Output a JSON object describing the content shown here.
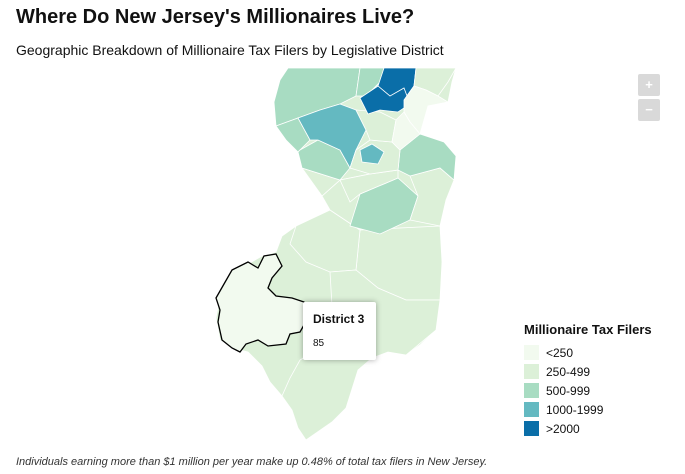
{
  "header": {
    "title": "Where Do New Jersey's Millionaires Live?",
    "subtitle": "Geographic Breakdown of Millionaire Tax Filers by Legislative District"
  },
  "zoom": {
    "in_label": "+",
    "out_label": "−"
  },
  "tooltip": {
    "title": "District 3",
    "value": "85"
  },
  "legend": {
    "title": "Millionaire Tax Filers",
    "items": [
      {
        "label": "<250",
        "color": "#f2faef"
      },
      {
        "label": "250-499",
        "color": "#dcf0d8"
      },
      {
        "label": "500-999",
        "color": "#a8dcc2"
      },
      {
        "label": "1000-1999",
        "color": "#64b9c1"
      },
      {
        "label": ">2000",
        "color": "#0a6ea8"
      }
    ]
  },
  "highlight": {
    "district": "District 3",
    "value": 85
  },
  "footnote": "Individuals earning more than $1 million per year make up 0.48% of total tax filers in New Jersey."
}
